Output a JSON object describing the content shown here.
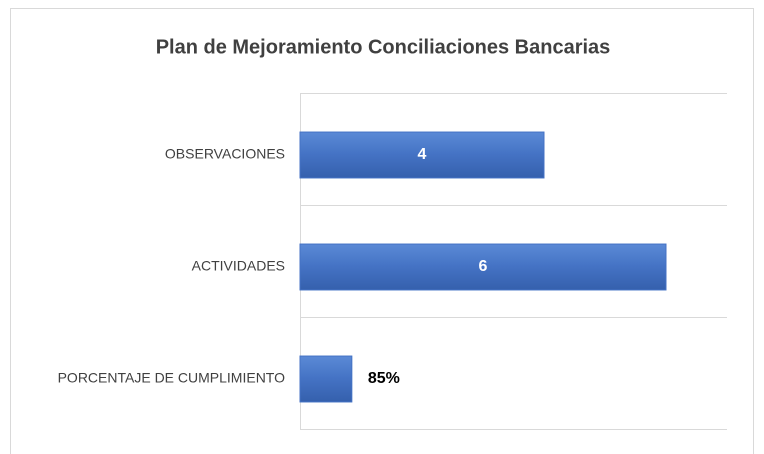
{
  "chart_data": {
    "type": "barh",
    "title": "Plan de Mejoramiento Conciliaciones Bancarias",
    "categories": [
      "OBSERVACIONES",
      "ACTIVIDADES",
      "PORCENTAJE DE CUMPLIMIENTO"
    ],
    "values": [
      4,
      6,
      0.85
    ],
    "value_labels": [
      "4",
      "6",
      "85%"
    ],
    "color": "#4472c4",
    "xlim": [
      0,
      7
    ]
  }
}
